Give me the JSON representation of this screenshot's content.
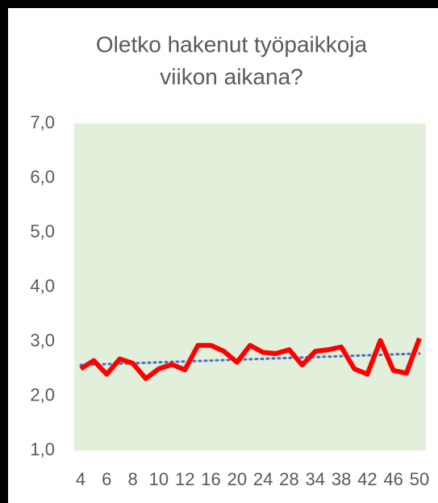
{
  "chart_data": {
    "type": "line",
    "title": [
      "Oletko hakenut työpaikkoja",
      "viikon aikana?"
    ],
    "categories": [
      "4",
      null,
      "6",
      null,
      "8",
      null,
      "10",
      null,
      "12",
      null,
      "16",
      null,
      "20",
      null,
      "24",
      null,
      "28",
      null,
      "34",
      null,
      "38",
      null,
      "42",
      null,
      "46",
      null,
      "50"
    ],
    "series": [
      {
        "color": "#ff0000",
        "values": [
          2.5,
          2.65,
          2.4,
          2.68,
          2.6,
          2.32,
          2.5,
          2.58,
          2.48,
          2.93,
          2.93,
          2.82,
          2.62,
          2.93,
          2.8,
          2.78,
          2.85,
          2.57,
          2.82,
          2.85,
          2.9,
          2.5,
          2.4,
          3.02,
          2.47,
          2.42,
          3.06
        ]
      }
    ],
    "trendline": {
      "color": "#4472c4",
      "values": [
        2.57,
        2.78
      ]
    },
    "ylim": [
      1,
      7
    ],
    "yticks": [
      {
        "value": 1,
        "label": "1,0"
      },
      {
        "value": 2,
        "label": "2,0"
      },
      {
        "value": 3,
        "label": "3,0"
      },
      {
        "value": 4,
        "label": "4,0"
      },
      {
        "value": 5,
        "label": "5,0"
      },
      {
        "value": 6,
        "label": "6,0"
      },
      {
        "value": 7,
        "label": "7,0"
      }
    ],
    "plot_background": "#e2efda"
  }
}
